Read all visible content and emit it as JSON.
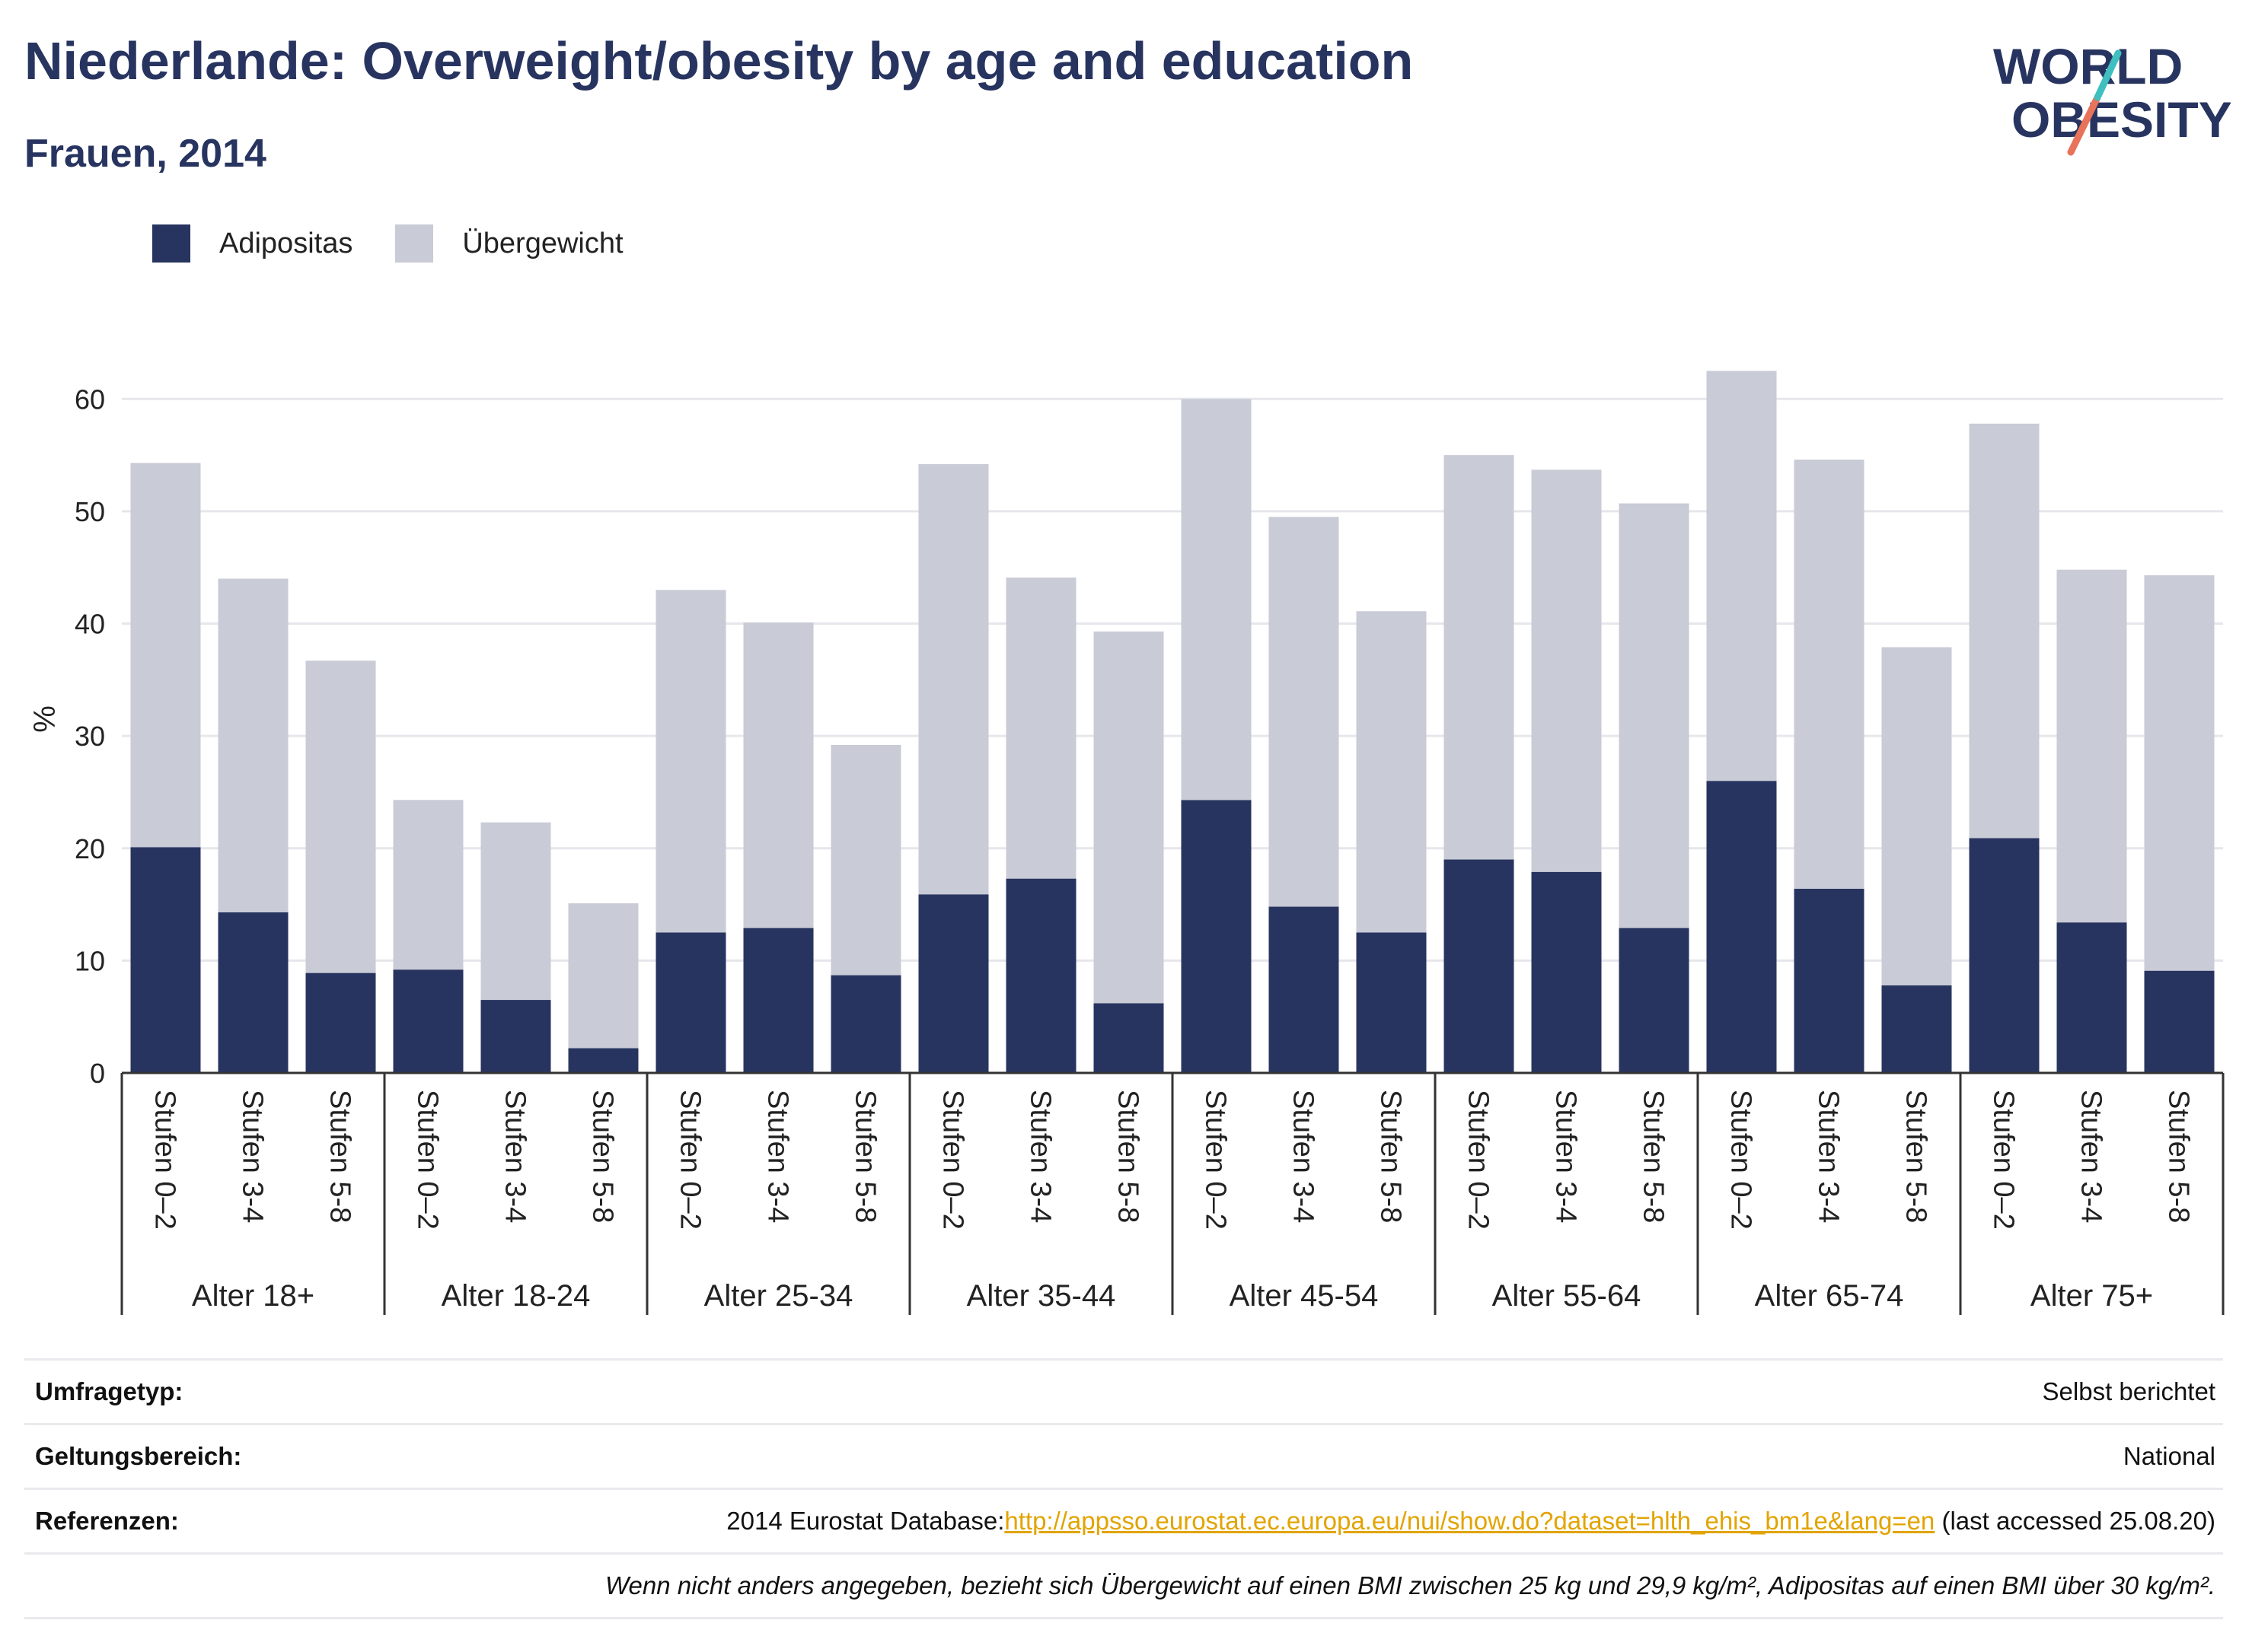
{
  "header": {
    "title": "Niederlande: Overweight/obesity by age and education",
    "subtitle": "Frauen, 2014"
  },
  "logo": {
    "line1": "WORLD",
    "line2": "OBESITY"
  },
  "colors": {
    "obesity": "#283460",
    "overweight": "#c9cbd6",
    "title": "#283460",
    "link": "#e2a400",
    "logo_teal": "#3fbfbf",
    "logo_coral": "#e8735a"
  },
  "legend": [
    {
      "label": "Adipositas",
      "color": "#283460"
    },
    {
      "label": "Übergewicht",
      "color": "#c9cbd6"
    }
  ],
  "chart_data": {
    "type": "bar",
    "stacked": true,
    "ylabel": "%",
    "ylim": [
      0,
      63
    ],
    "yticks": [
      0,
      10,
      20,
      30,
      40,
      50,
      60
    ],
    "grid": true,
    "legend_position": "top-left",
    "groups": [
      "Alter 18+",
      "Alter 18-24",
      "Alter 25-34",
      "Alter 35-44",
      "Alter 45-54",
      "Alter 55-64",
      "Alter 65-74",
      "Alter 75+"
    ],
    "subcategories": [
      "Stufen 0–2",
      "Stufen 3-4",
      "Stufen 5-8"
    ],
    "series": [
      {
        "name": "Adipositas",
        "values": [
          20.1,
          14.3,
          8.9,
          9.2,
          6.5,
          2.2,
          12.5,
          12.9,
          8.7,
          15.9,
          17.3,
          6.2,
          24.3,
          14.8,
          12.5,
          19.0,
          17.9,
          12.9,
          26.0,
          16.4,
          7.8,
          20.9,
          13.4,
          9.1
        ]
      },
      {
        "name": "Übergewicht",
        "values": [
          34.2,
          29.7,
          27.8,
          15.1,
          15.8,
          12.9,
          30.5,
          27.2,
          20.5,
          38.3,
          26.8,
          33.1,
          35.7,
          34.7,
          28.6,
          36.0,
          35.8,
          37.8,
          36.5,
          38.2,
          30.1,
          36.9,
          31.4,
          35.2
        ]
      }
    ]
  },
  "meta": {
    "survey_label": "Umfragetyp:",
    "survey_value": "Selbst berichtet",
    "scope_label": "Geltungsbereich:",
    "scope_value": "National",
    "ref_label": "Referenzen:",
    "ref_prefix": "2014 Eurostat Database:",
    "ref_link": "http://appsso.eurostat.ec.europa.eu/nui/show.do?dataset=hlth_ehis_bm1e&lang=en",
    "ref_suffix": " (last accessed 25.08.20)",
    "note": "Wenn nicht anders angegeben, bezieht sich Übergewicht auf einen BMI zwischen 25 kg und 29,9 kg/m², Adipositas auf einen BMI über 30 kg/m²."
  }
}
